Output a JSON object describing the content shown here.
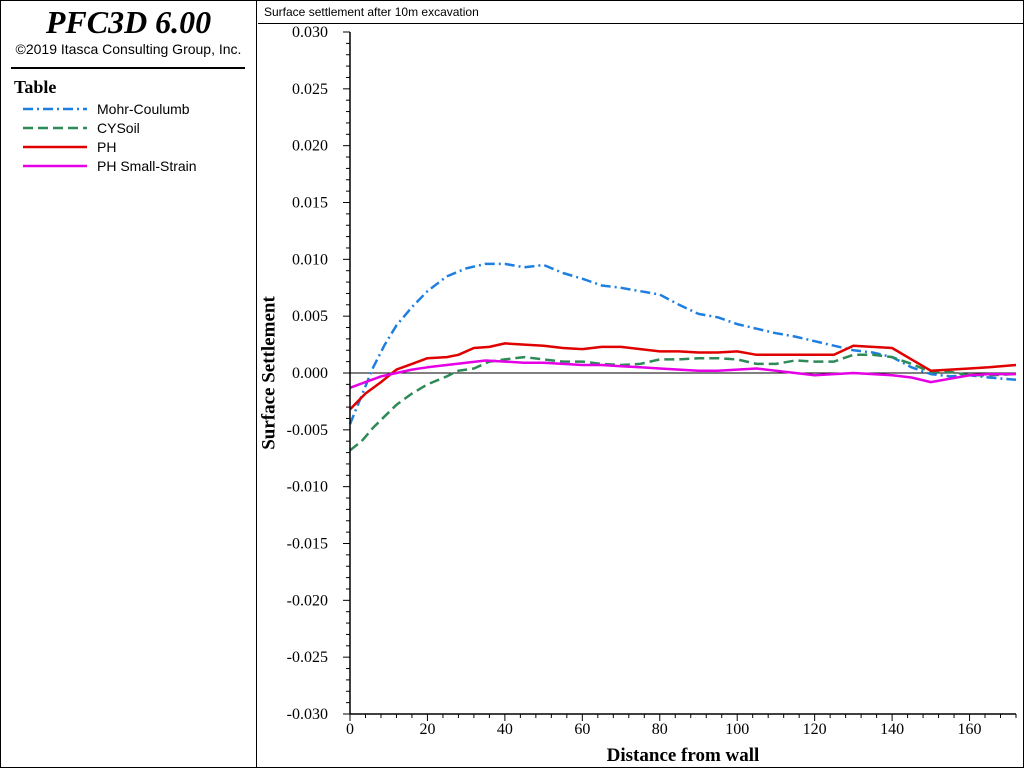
{
  "app": {
    "title": "PFC3D 6.00",
    "copyright": "©2019 Itasca Consulting Group, Inc."
  },
  "legend": {
    "title": "Table"
  },
  "plot": {
    "title": "Surface settlement after 10m excavation"
  },
  "chart_data": {
    "type": "line",
    "title": "Surface settlement after 10m excavation",
    "xlabel": "Distance from wall",
    "ylabel": "Surface Settlement",
    "xlim": [
      0,
      172
    ],
    "ylim": [
      -0.03,
      0.03
    ],
    "xticks": [
      0,
      20,
      40,
      60,
      80,
      100,
      120,
      140,
      160
    ],
    "xtick_labels": [
      "0",
      "20",
      "40",
      "60",
      "80",
      "100",
      "120",
      "140",
      "160"
    ],
    "yticks": [
      0.03,
      0.025,
      0.02,
      0.015,
      0.01,
      0.005,
      0,
      -0.005,
      -0.01,
      -0.015,
      -0.02,
      -0.025,
      -0.03
    ],
    "ytick_labels": [
      "0.030",
      "0.025",
      "0.020",
      "0.015",
      "0.010",
      "0.005",
      "0.000",
      "-0.005",
      "-0.010",
      "-0.015",
      "-0.020",
      "-0.025",
      "-0.030"
    ],
    "zero_line": true,
    "legend_position": "left-panel",
    "series": [
      {
        "name": "Mohr-Coulumb",
        "color": "#1f7fe0",
        "dash": "dash-dot",
        "x": [
          0,
          3,
          6,
          9,
          12,
          16,
          20,
          25,
          30,
          35,
          40,
          45,
          50,
          55,
          60,
          65,
          70,
          75,
          80,
          85,
          90,
          95,
          100,
          105,
          110,
          115,
          120,
          125,
          130,
          135,
          140,
          145,
          150,
          155,
          160,
          165,
          172
        ],
        "y": [
          -0.0045,
          -0.002,
          0.0005,
          0.0025,
          0.0042,
          0.0058,
          0.0072,
          0.0085,
          0.0092,
          0.0096,
          0.0096,
          0.0093,
          0.0095,
          0.0088,
          0.0083,
          0.0077,
          0.0075,
          0.0072,
          0.0069,
          0.006,
          0.0052,
          0.0049,
          0.0043,
          0.0039,
          0.0035,
          0.0032,
          0.0028,
          0.0024,
          0.002,
          0.0018,
          0.0014,
          0.0005,
          -0.0001,
          -0.0003,
          -0.0002,
          -0.0004,
          -0.0006
        ]
      },
      {
        "name": "CYSoil",
        "color": "#2e8b57",
        "dash": "dash",
        "x": [
          0,
          3,
          6,
          9,
          12,
          16,
          20,
          25,
          28,
          32,
          36,
          40,
          45,
          50,
          55,
          60,
          65,
          70,
          75,
          80,
          85,
          90,
          95,
          100,
          105,
          110,
          115,
          120,
          125,
          130,
          135,
          140,
          145,
          150,
          155,
          160,
          165,
          172
        ],
        "y": [
          -0.0068,
          -0.006,
          -0.0048,
          -0.0038,
          -0.0028,
          -0.0018,
          -0.001,
          -0.0003,
          0.0002,
          0.0004,
          0.001,
          0.0012,
          0.0014,
          0.0012,
          0.001,
          0.001,
          0.0008,
          0.0007,
          0.0008,
          0.0012,
          0.0012,
          0.0013,
          0.0013,
          0.0012,
          0.0008,
          0.0008,
          0.0011,
          0.001,
          0.001,
          0.0016,
          0.0016,
          0.0014,
          0.0008,
          0.0001,
          0.0001,
          -0.0002,
          -0.0002,
          -0.0001
        ]
      },
      {
        "name": "PH",
        "color": "#e00000",
        "dash": "solid",
        "x": [
          0,
          4,
          8,
          12,
          16,
          20,
          25,
          28,
          32,
          36,
          40,
          45,
          50,
          55,
          60,
          65,
          70,
          75,
          80,
          85,
          90,
          95,
          100,
          105,
          110,
          115,
          120,
          125,
          130,
          135,
          140,
          145,
          150,
          155,
          160,
          165,
          172
        ],
        "y": [
          -0.0032,
          -0.0018,
          -0.0008,
          0.0003,
          0.0008,
          0.0013,
          0.0014,
          0.0016,
          0.0022,
          0.0023,
          0.0026,
          0.0025,
          0.0024,
          0.0022,
          0.0021,
          0.0023,
          0.0023,
          0.0021,
          0.0019,
          0.0019,
          0.0018,
          0.0018,
          0.0019,
          0.0016,
          0.0016,
          0.0016,
          0.0016,
          0.0016,
          0.0024,
          0.0023,
          0.0022,
          0.0012,
          0.0002,
          0.0003,
          0.0004,
          0.0005,
          0.0007
        ]
      },
      {
        "name": "PH Small-Strain",
        "color": "#e600e6",
        "dash": "solid",
        "x": [
          0,
          4,
          8,
          12,
          16,
          20,
          25,
          30,
          35,
          40,
          45,
          50,
          55,
          60,
          65,
          70,
          75,
          80,
          85,
          90,
          95,
          100,
          105,
          110,
          115,
          120,
          125,
          130,
          135,
          140,
          145,
          150,
          155,
          160,
          165,
          172
        ],
        "y": [
          -0.0013,
          -0.0008,
          -0.0003,
          0,
          0.0003,
          0.0005,
          0.0007,
          0.0009,
          0.0011,
          0.001,
          0.0009,
          0.0009,
          0.0008,
          0.0007,
          0.0007,
          0.0006,
          0.0005,
          0.0004,
          0.0003,
          0.0002,
          0.0002,
          0.0003,
          0.0004,
          0.0002,
          0,
          -0.0002,
          -0.0001,
          0,
          -0.0001,
          -0.0002,
          -0.0004,
          -0.0008,
          -0.0005,
          -0.0002,
          -0.0001,
          -0.0001
        ]
      }
    ]
  }
}
